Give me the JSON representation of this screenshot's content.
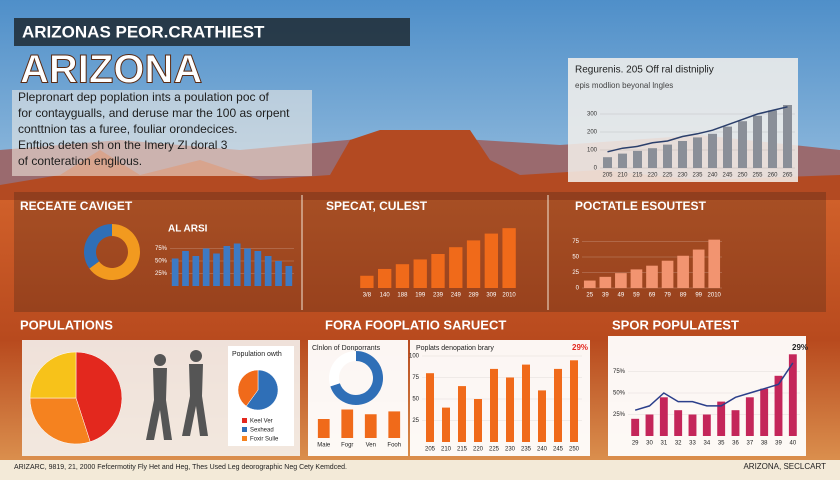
{
  "header": {
    "banner": "ARIZONAS PEOR.CRATHIEST",
    "title": "ARIZONA",
    "paragraph": [
      "Plepronart dep poplation ints a poulation poc of",
      "for contaygualls, and deruse mar the 100 as orpent",
      "conttnion tas a furee, fouliar orondecices.",
      "Enftios deten sh on the Imery Zl doral 3",
      "of conteration engllous."
    ]
  },
  "top_chart": {
    "title": "Regurenis. 205 Off ral distnipliy",
    "subtitle": "epis modlion beyonal lngles",
    "color": "#8a8f98",
    "line_color": "#2b3f6b",
    "ylim": [
      0,
      400
    ],
    "yticks": [
      0,
      100,
      200,
      300
    ],
    "xticks": [
      "205",
      "210",
      "215",
      "220",
      "225",
      "230",
      "235",
      "240",
      "245",
      "250",
      "255",
      "260",
      "265"
    ],
    "values": [
      60,
      80,
      95,
      110,
      130,
      150,
      170,
      190,
      230,
      260,
      290,
      320,
      350
    ],
    "line": [
      90,
      110,
      120,
      140,
      150,
      175,
      190,
      210,
      240,
      270,
      300,
      320,
      340
    ]
  },
  "panels": [
    {
      "title": "RECEATE CAVIGET",
      "label": "AL ARSI",
      "donut": {
        "values": [
          65,
          35
        ],
        "colors": [
          "#f29a1f",
          "#2f6fb7"
        ]
      },
      "bars": {
        "color": "#3d7ac4",
        "ylim": [
          0,
          100
        ],
        "yticks": [
          {
            "value": 25,
            "label": "25%"
          },
          {
            "value": 50,
            "label": "50%"
          },
          {
            "value": 75,
            "label": "75%"
          }
        ],
        "values": [
          55,
          70,
          60,
          75,
          65,
          80,
          85,
          75,
          70,
          60,
          50,
          40
        ]
      }
    },
    {
      "title": "SPECAT, CULEST",
      "bars": {
        "color": "#f06a1a",
        "ylim": [
          0,
          100
        ],
        "xticks": [
          "3/8",
          "140",
          "188",
          "199",
          "239",
          "249",
          "289",
          "309",
          "2010"
        ],
        "values": [
          18,
          28,
          35,
          42,
          50,
          60,
          70,
          80,
          88
        ]
      }
    },
    {
      "title": "POCTATLE ESOUTEST",
      "bars": {
        "color": "#f29470",
        "ylim": [
          0,
          100
        ],
        "yticks": [
          0,
          25,
          50,
          75
        ],
        "xticks": [
          "25",
          "39",
          "49",
          "59",
          "69",
          "79",
          "89",
          "99",
          "2010"
        ],
        "values": [
          12,
          18,
          24,
          30,
          36,
          44,
          52,
          62,
          78
        ]
      }
    }
  ],
  "bottom": {
    "populations": {
      "title": "POPULATIONS",
      "pie": {
        "values": [
          45,
          30,
          25
        ],
        "colors": [
          "#e3281e",
          "#f5821f",
          "#f7c21a"
        ]
      },
      "card_title": "Population owth",
      "donut": {
        "values": [
          60,
          40
        ],
        "colors": [
          "#2f6fb7",
          "#f06a1a"
        ]
      },
      "legend": [
        {
          "name": "Keel Ver",
          "color": "#e3281e"
        },
        {
          "name": "Sexhead",
          "color": "#2f6fb7"
        },
        {
          "name": "Foxir Sulle",
          "color": "#f5821f"
        }
      ]
    },
    "fora": {
      "title": "FORA FOOPLATIO SARUECT",
      "card_title": "Clnlon of Donporrants",
      "donut": {
        "values": [
          70,
          30
        ],
        "colors": [
          "#2f6fb7",
          "#ffffff"
        ]
      },
      "bars": {
        "color": "#f06a1a",
        "ylim": [
          0,
          40
        ],
        "categories": [
          "Maie",
          "Fogr",
          "Ven",
          "Fooh"
        ],
        "values": [
          20,
          30,
          25,
          28
        ]
      },
      "chart_title": "Poplats denopation brary",
      "annotation": "29%",
      "chart": {
        "color": "#f06a1a",
        "ylim": [
          0,
          100
        ],
        "yticks": [
          25,
          50,
          75,
          100
        ],
        "xticks": [
          "205",
          "210",
          "215",
          "220",
          "225",
          "230",
          "235",
          "240",
          "245",
          "250"
        ],
        "values": [
          80,
          40,
          65,
          50,
          85,
          75,
          90,
          60,
          85,
          95
        ]
      }
    },
    "spor": {
      "title": "SPOR POPULATEST",
      "annotation": "29%",
      "chart": {
        "color": "#c4265a",
        "line_color": "#2b3f8b",
        "ylim": [
          0,
          100
        ],
        "yticks": [
          {
            "value": 25,
            "label": "25%"
          },
          {
            "value": 50,
            "label": "50%"
          },
          {
            "value": 75,
            "label": "75%"
          }
        ],
        "xticks": [
          "29",
          "30",
          "31",
          "32",
          "33",
          "34",
          "35",
          "36",
          "37",
          "38",
          "39",
          "40"
        ],
        "values": [
          20,
          25,
          45,
          30,
          25,
          25,
          40,
          30,
          45,
          55,
          70,
          95
        ],
        "line": [
          30,
          35,
          50,
          40,
          40,
          35,
          35,
          45,
          50,
          55,
          60,
          85
        ]
      }
    }
  },
  "footer": {
    "left": "ARIZARC, 9819, 21, 2000 Fefcermotity Fly Het and Heg, Thes Used Leg deorographic Neg Cety Kemdced.",
    "right": "ARIZONA, SECLCART"
  }
}
